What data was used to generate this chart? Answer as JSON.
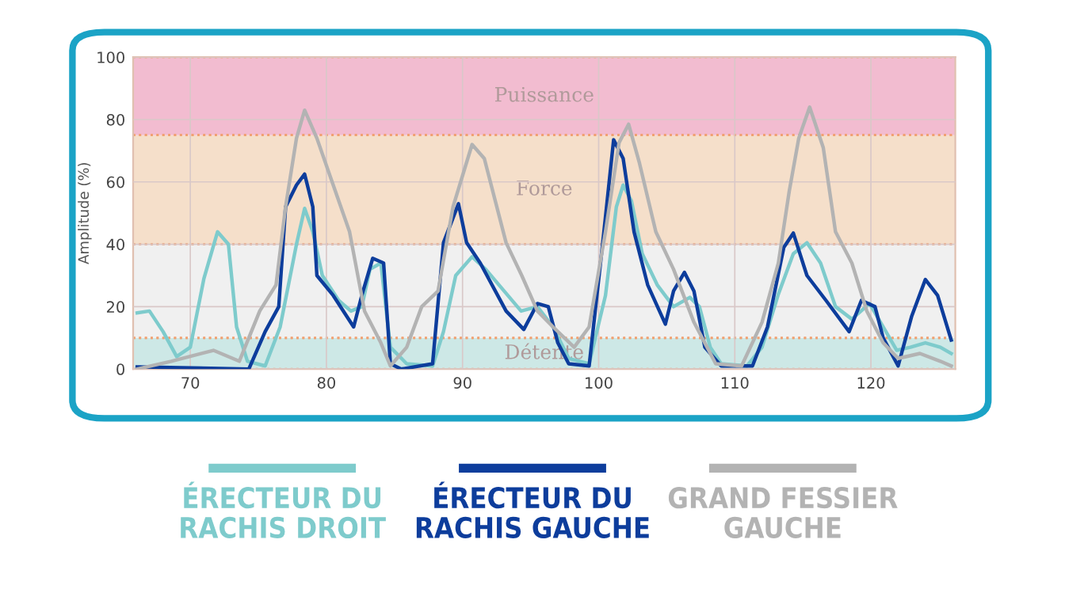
{
  "chart_data": {
    "type": "line",
    "ylabel": "Amplitude (%)",
    "xlim": [
      65.8,
      126.2
    ],
    "ylim": [
      0,
      100
    ],
    "xticks": [
      70,
      80,
      90,
      100,
      110,
      120
    ],
    "yticks": [
      0,
      20,
      40,
      60,
      80,
      100
    ],
    "grid": true,
    "legend": "bottom",
    "marker": "none",
    "line_style": "solid",
    "bands": [
      {
        "axis": "y",
        "from": 0,
        "to": 10,
        "label": "Détente",
        "color": "#cde8e6"
      },
      {
        "axis": "y",
        "from": 10,
        "to": 40,
        "label": null,
        "color": "#f0f0f0"
      },
      {
        "axis": "y",
        "from": 40,
        "to": 75,
        "label": "Force",
        "color": "#f5dfca"
      },
      {
        "axis": "y",
        "from": 75,
        "to": 100,
        "label": "Puissance",
        "color": "#f2bcd0"
      }
    ],
    "series": [
      {
        "name": "ÉRECTEUR DU\nRACHIS DROIT",
        "color": "#7ecbcc",
        "x": [
          66.1,
          67.0,
          68.0,
          69.0,
          70.0,
          71.0,
          72.0,
          72.8,
          73.4,
          74.2,
          75.5,
          76.6,
          77.8,
          78.4,
          79.0,
          79.7,
          80.9,
          81.8,
          82.6,
          83.2,
          84.0,
          84.7,
          85.9,
          87.8,
          88.6,
          89.5,
          90.7,
          91.7,
          94.3,
          95.5,
          96.65,
          97.8,
          99.3,
          100.5,
          101.3,
          101.8,
          102.4,
          103.2,
          104.3,
          105.5,
          106.7,
          107.4,
          108.2,
          109.0,
          110.9,
          112.0,
          113.2,
          114.3,
          115.3,
          116.3,
          117.4,
          118.6,
          119.9,
          120.9,
          121.9,
          122.9,
          124.0,
          125.1,
          125.9
        ],
        "values": [
          18,
          18.6,
          12,
          4,
          7,
          29,
          44,
          40,
          13.5,
          2.5,
          1,
          13.5,
          40,
          51.5,
          44,
          30,
          22,
          18.6,
          20,
          32,
          34,
          7,
          1.7,
          1,
          12,
          30,
          36,
          32,
          18.6,
          20,
          13.5,
          3.4,
          1.7,
          23.6,
          52,
          59,
          54,
          37,
          27,
          20,
          23,
          20,
          7,
          1.7,
          1,
          7,
          24,
          37,
          40.5,
          34,
          20,
          16,
          21,
          13.5,
          6,
          7,
          8.4,
          7,
          5
        ]
      },
      {
        "name": "ÉRECTEUR DU\nRACHIS GAUCHE",
        "color": "#0d3d9c",
        "x": [
          66.1,
          74.3,
          75.5,
          76.5,
          77.0,
          77.8,
          78.4,
          79.0,
          79.3,
          80.5,
          82.0,
          82.6,
          83.4,
          84.2,
          84.7,
          85.5,
          87.8,
          88.6,
          89.7,
          90.3,
          91.3,
          93.2,
          94.5,
          95.5,
          96.3,
          97.0,
          97.8,
          99.3,
          100.3,
          101.1,
          101.8,
          102.6,
          103.6,
          104.9,
          105.5,
          106.3,
          107.0,
          107.8,
          109.0,
          111.3,
          112.4,
          113.6,
          114.3,
          115.3,
          116.7,
          118.4,
          119.3,
          120.3,
          120.9,
          122.0,
          123.0,
          124.0,
          124.9,
          125.9
        ],
        "values": [
          0.7,
          0,
          12,
          20,
          52,
          59,
          62.5,
          52,
          30,
          23.6,
          13.5,
          23.6,
          35.5,
          34,
          1.7,
          0,
          1.7,
          40.5,
          53,
          40.5,
          34,
          18.6,
          12.7,
          21,
          20,
          8.4,
          1.7,
          1,
          40.5,
          73.5,
          67.5,
          44,
          27,
          14.4,
          25,
          31,
          25,
          7,
          1,
          1,
          13.5,
          39,
          43.6,
          30,
          22,
          12,
          22,
          20,
          10,
          1,
          17,
          28.7,
          23.6,
          9.3
        ]
      },
      {
        "name": "GRAND FESSIER\nGAUCHE",
        "color": "#b3b3b3",
        "x": [
          66.1,
          68.6,
          71.7,
          73.6,
          75.1,
          76.3,
          77.0,
          77.8,
          78.4,
          79.3,
          80.5,
          81.7,
          82.8,
          84.0,
          84.7,
          85.9,
          87.0,
          88.2,
          89.3,
          90.7,
          91.6,
          93.2,
          94.35,
          95.5,
          96.65,
          98.2,
          99.3,
          100.5,
          101.5,
          102.2,
          103.0,
          104.2,
          105.5,
          107.0,
          108.6,
          110.5,
          112.0,
          113.2,
          114.0,
          114.7,
          115.5,
          116.5,
          117.4,
          118.6,
          119.7,
          120.9,
          122.0,
          123.6,
          125.1,
          125.9
        ],
        "values": [
          0,
          2.5,
          6,
          2.5,
          18.6,
          27,
          52,
          74,
          83,
          74,
          59,
          44,
          18.6,
          8.4,
          1,
          7,
          20,
          25,
          52,
          72,
          67.5,
          40.5,
          30,
          18.6,
          13.5,
          7,
          13.5,
          44,
          72.6,
          78.5,
          66,
          44,
          32,
          15,
          1.7,
          1,
          15,
          34,
          57,
          74,
          84,
          71,
          44,
          34,
          18.6,
          8.4,
          3.4,
          5,
          2.5,
          1
        ]
      }
    ]
  }
}
